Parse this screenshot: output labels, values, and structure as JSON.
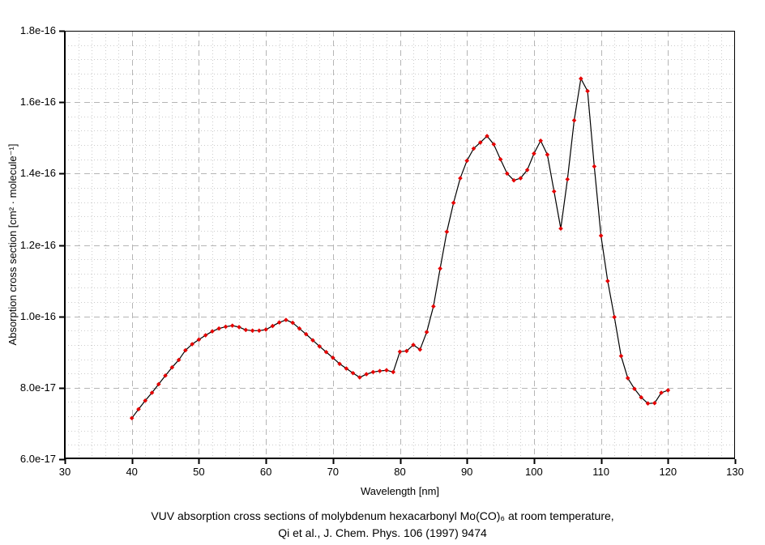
{
  "figure": {
    "background": "#ffffff",
    "caption_line1": "VUV absorption cross sections of molybdenum hexacarbonyl Mo(CO)₆ at room temperature,",
    "caption_line2": "Qi et al., J. Chem. Phys. 106 (1997) 9474"
  },
  "chart_data": {
    "type": "line",
    "title": "",
    "xlabel": "Wavelength [nm]",
    "ylabel": "Absorption cross section [cm² · molecule⁻¹]",
    "grid": true,
    "legend": false,
    "xlim": [
      30,
      130
    ],
    "x_major_ticks": [
      30,
      40,
      50,
      60,
      70,
      80,
      90,
      100,
      110,
      120,
      130
    ],
    "x_tick_labels": [
      "30",
      "40",
      "50",
      "60",
      "70",
      "80",
      "90",
      "100",
      "110",
      "120",
      "130"
    ],
    "x_minor_step": 2,
    "y_unit": "1e-17 cm2/molecule",
    "ylim": [
      6,
      18
    ],
    "y_major_ticks": [
      6,
      8,
      10,
      12,
      14,
      16,
      18
    ],
    "y_tick_labels": [
      "6.0e-17",
      "8.0e-17",
      "1.0e-16",
      "1.2e-16",
      "1.4e-16",
      "1.6e-16",
      "1.8e-16"
    ],
    "y_minor_step": 0.4,
    "colors": {
      "line": "#000000",
      "marker": "#e60000",
      "grid_minor": "#cccccc",
      "grid_major": "#b5b5b5"
    },
    "series": [
      {
        "name": "Mo(CO)6 VUV absorption cross section",
        "marker": "diamond",
        "x": [
          40,
          41,
          42,
          43,
          44,
          45,
          46,
          47,
          48,
          49,
          50,
          51,
          52,
          53,
          54,
          55,
          56,
          57,
          58,
          59,
          60,
          61,
          62,
          63,
          64,
          65,
          66,
          67,
          68,
          69,
          70,
          71,
          72,
          73,
          74,
          75,
          76,
          77,
          78,
          79,
          80,
          81,
          82,
          83,
          84,
          85,
          86,
          87,
          88,
          89,
          90,
          91,
          92,
          93,
          94,
          95,
          96,
          97,
          98,
          99,
          100,
          101,
          102,
          103,
          104,
          105,
          106,
          107,
          108,
          109,
          110,
          111,
          112,
          113,
          114,
          115,
          116,
          117,
          118,
          119,
          120
        ],
        "y": [
          7.15,
          7.4,
          7.64,
          7.86,
          8.1,
          8.34,
          8.57,
          8.78,
          9.05,
          9.22,
          9.35,
          9.47,
          9.58,
          9.66,
          9.71,
          9.74,
          9.7,
          9.62,
          9.6,
          9.6,
          9.63,
          9.73,
          9.83,
          9.9,
          9.82,
          9.66,
          9.5,
          9.33,
          9.16,
          9.0,
          8.84,
          8.67,
          8.54,
          8.41,
          8.29,
          8.38,
          8.44,
          8.47,
          8.49,
          8.44,
          9.01,
          9.03,
          9.2,
          9.07,
          9.56,
          10.28,
          11.34,
          12.37,
          13.18,
          13.87,
          14.36,
          14.7,
          14.87,
          15.05,
          14.82,
          14.4,
          14.0,
          13.81,
          13.87,
          14.1,
          14.56,
          14.92,
          14.53,
          13.5,
          12.46,
          13.84,
          15.49,
          16.66,
          16.31,
          14.2,
          12.26,
          10.99,
          9.98,
          8.89,
          8.27,
          7.97,
          7.73,
          7.56,
          7.57,
          7.86,
          7.93
        ]
      }
    ]
  }
}
